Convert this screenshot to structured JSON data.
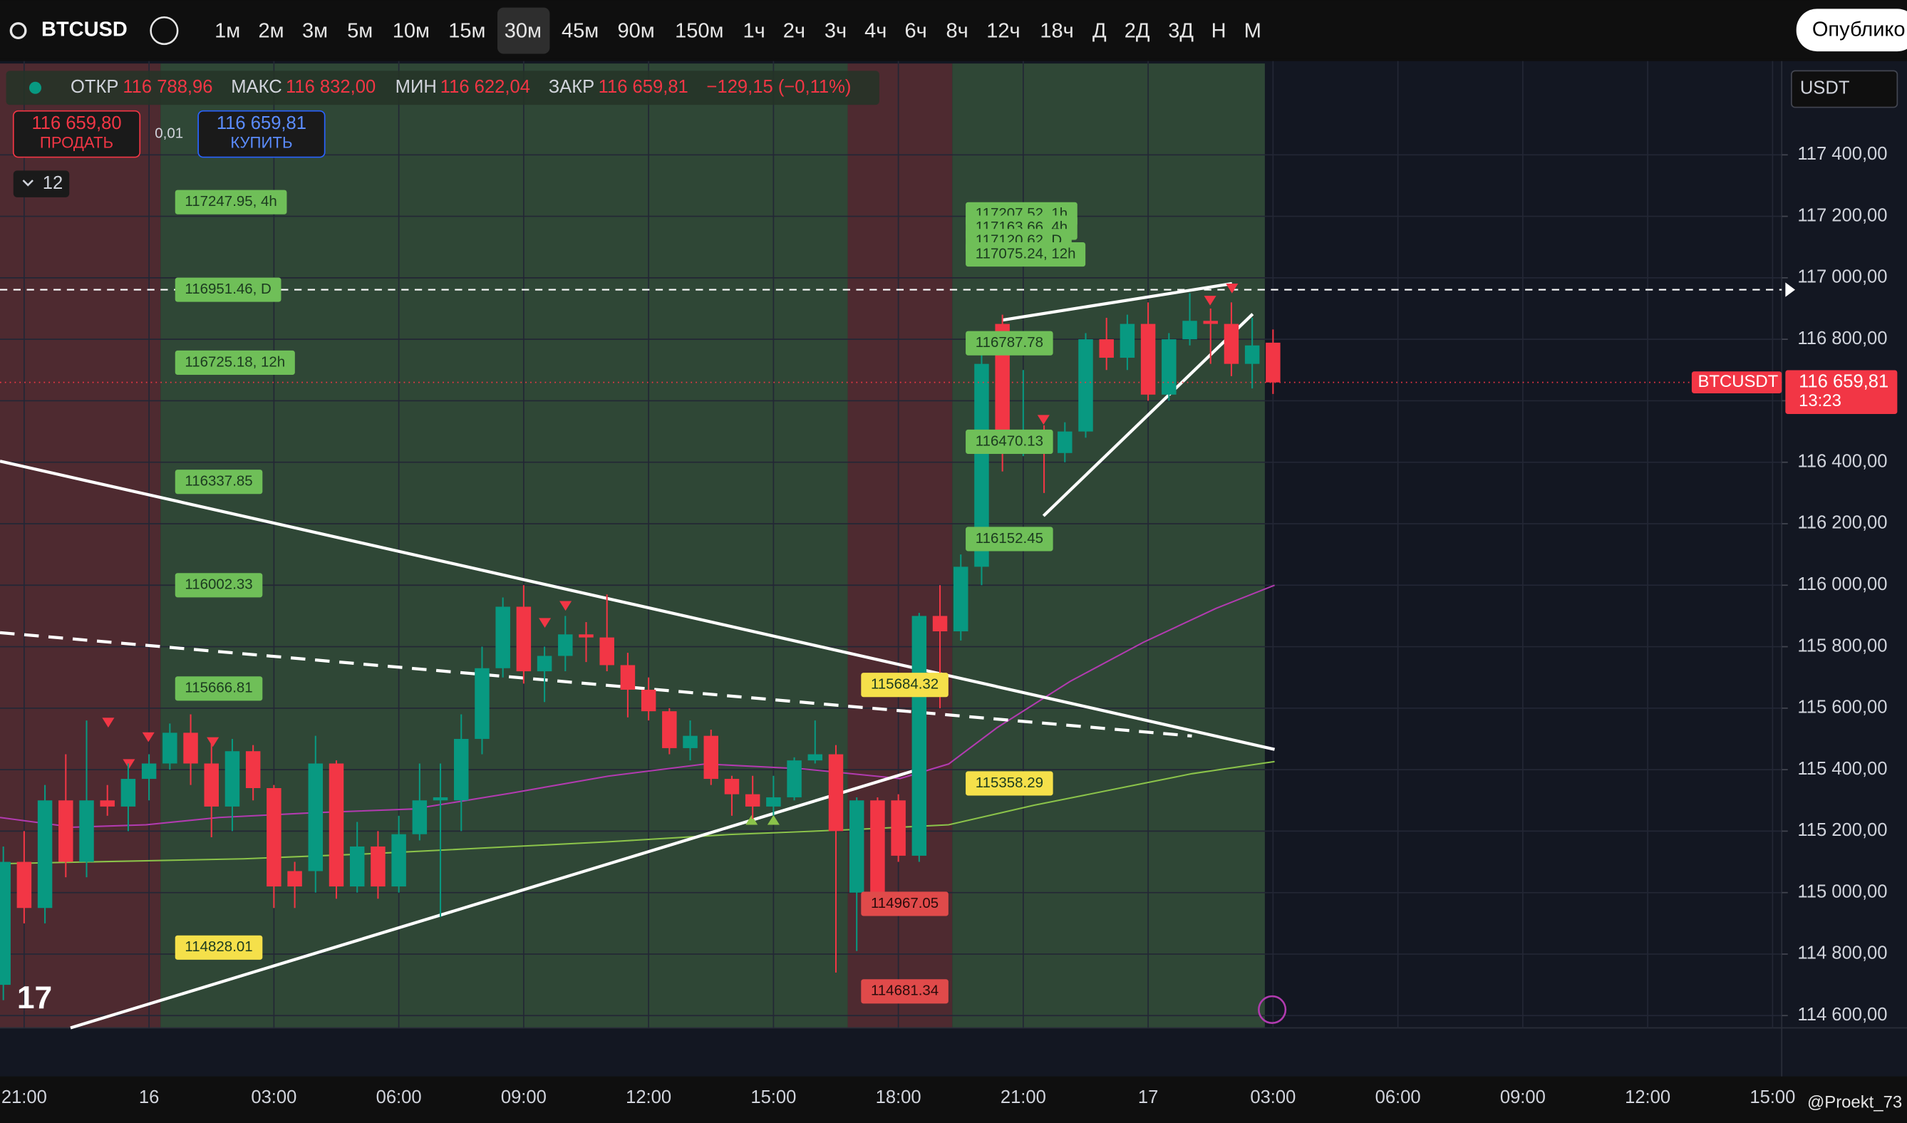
{
  "toolbar": {
    "symbol": "BTCUSD",
    "intervals": [
      "1м",
      "2м",
      "3м",
      "5м",
      "10м",
      "15м",
      "30м",
      "45м",
      "90м",
      "150м",
      "1ч",
      "2ч",
      "3ч",
      "4ч",
      "6ч",
      "8ч",
      "12ч",
      "18ч",
      "Д",
      "2Д",
      "3Д",
      "Н",
      "М"
    ],
    "publish": "Опублико"
  },
  "ohlc_legend": {
    "open_label": "ОТКР",
    "open": "116 788,96",
    "high_label": "МАКС",
    "high": "116 832,00",
    "low_label": "МИН",
    "low": "116 622,04",
    "close_label": "ЗАКР",
    "close": "116 659,81",
    "change": "−129,15 (−0,11%)"
  },
  "trade": {
    "sell_price": "116 659,80",
    "sell": "ПРОДАТЬ",
    "spread": "0,01",
    "buy_price": "116 659,81",
    "buy": "КУПИТЬ"
  },
  "indicators_count": "12",
  "currency": "USDT",
  "watermark": "@Proekt_73",
  "level_labels": [
    "117247.95, 4h",
    "116951.46, D",
    "116725.18, 12h",
    "116337.85",
    "116002.33",
    "115666.81",
    "114828.01",
    "117207.52, 1h",
    "117163.66, 4h",
    "117120.62, D",
    "117075.24, 12h",
    "116787.78",
    "116470.13",
    "116152.45",
    "115684.32",
    "115358.29",
    "114967.05",
    "114681.34"
  ],
  "chart_data": {
    "type": "candlestick",
    "x": [
      20.5,
      21,
      21.5,
      22,
      22.5,
      23,
      23.5,
      24,
      24.5,
      25,
      25.5,
      26,
      26.5,
      27,
      27.5,
      28,
      28.5,
      29,
      29.5,
      30,
      30.5,
      31,
      31.5,
      32,
      32.5,
      33,
      33.5,
      34,
      34.5,
      35,
      35.5,
      36,
      36.5,
      37,
      37.5,
      38,
      38.5,
      39,
      39.5,
      40,
      40.5,
      41,
      41.5,
      42,
      42.5,
      43,
      43.5,
      44,
      44.5,
      45,
      45.5,
      46,
      46.5,
      47,
      47.5,
      48,
      48.5,
      49,
      49.5,
      50,
      50.5,
      51
    ],
    "open": [
      114700,
      115100,
      114950,
      115300,
      115100,
      115300,
      115280,
      115370,
      115420,
      115520,
      115420,
      115280,
      115460,
      115340,
      115070,
      115070,
      115420,
      115020,
      115150,
      115020,
      115190,
      115300,
      115300,
      115500,
      115730,
      115930,
      115720,
      115770,
      115840,
      115830,
      115740,
      115660,
      115590,
      115470,
      115510,
      115370,
      115320,
      115280,
      115310,
      115430,
      115450,
      115000,
      115300,
      115300,
      115120,
      115900,
      115850,
      116060,
      116850,
      116450,
      116480,
      116430,
      116500,
      116800,
      116740,
      116850,
      116620,
      116800,
      116860,
      116850,
      116720,
      116788.96
    ],
    "high": [
      115150,
      115200,
      115350,
      115450,
      115560,
      115350,
      115420,
      115450,
      115550,
      115580,
      115500,
      115500,
      115480,
      115350,
      115100,
      115510,
      115430,
      115230,
      115200,
      115250,
      115420,
      115420,
      115580,
      115800,
      115960,
      116000,
      115800,
      115900,
      115880,
      115970,
      115780,
      115700,
      115600,
      115560,
      115530,
      115380,
      115380,
      115380,
      115440,
      115560,
      115480,
      115310,
      115310,
      115320,
      115910,
      116000,
      116100,
      116800,
      116880,
      116700,
      116520,
      116530,
      116820,
      116870,
      116880,
      116920,
      116820,
      116950,
      116900,
      116920,
      116870,
      116832
    ],
    "low": [
      114650,
      114900,
      114900,
      115050,
      115050,
      115250,
      115200,
      115300,
      115400,
      115350,
      115180,
      115200,
      115300,
      114950,
      114950,
      115000,
      114980,
      115000,
      114980,
      115000,
      115170,
      114920,
      115200,
      115450,
      115700,
      115680,
      115620,
      115720,
      115750,
      115720,
      115570,
      115560,
      115450,
      115430,
      115350,
      115250,
      115240,
      115250,
      115300,
      115420,
      114740,
      114810,
      114950,
      115100,
      115100,
      115600,
      115820,
      116000,
      116370,
      116420,
      116300,
      116400,
      116480,
      116700,
      116700,
      116600,
      116600,
      116780,
      116720,
      116680,
      116640,
      116622.04
    ],
    "close": [
      115100,
      114950,
      115300,
      115100,
      115300,
      115280,
      115370,
      115420,
      115520,
      115420,
      115280,
      115460,
      115340,
      115020,
      115020,
      115420,
      115020,
      115150,
      115020,
      115190,
      115300,
      115310,
      115500,
      115730,
      115930,
      115720,
      115770,
      115840,
      115830,
      115740,
      115660,
      115590,
      115470,
      115510,
      115370,
      115320,
      115280,
      115310,
      115430,
      115450,
      115200,
      115300,
      115000,
      115120,
      115900,
      115850,
      116060,
      116720,
      116450,
      116490,
      116430,
      116500,
      116800,
      116740,
      116850,
      116620,
      116800,
      116860,
      116850,
      116720,
      116780,
      116659.81
    ],
    "up_color": "#089981",
    "down_color": "#f23645",
    "xlim": [
      20.42,
      63.22
    ],
    "xticks": [
      {
        "value": 21,
        "label": "21:00"
      },
      {
        "value": 24,
        "label": "16"
      },
      {
        "value": 27,
        "label": "03:00"
      },
      {
        "value": 30,
        "label": "06:00"
      },
      {
        "value": 33,
        "label": "09:00"
      },
      {
        "value": 36,
        "label": "12:00"
      },
      {
        "value": 39,
        "label": "15:00"
      },
      {
        "value": 42,
        "label": "18:00"
      },
      {
        "value": 45,
        "label": "21:00"
      },
      {
        "value": 48,
        "label": "17"
      },
      {
        "value": 51,
        "label": "03:00"
      },
      {
        "value": 54,
        "label": "06:00"
      },
      {
        "value": 57,
        "label": "09:00"
      },
      {
        "value": 60,
        "label": "12:00"
      },
      {
        "value": 63,
        "label": "15:00"
      }
    ],
    "ylim": [
      114560,
      117705
    ],
    "yticks": [
      {
        "value": 114600,
        "label": "114 600,00"
      },
      {
        "value": 114800,
        "label": "114 800,00"
      },
      {
        "value": 115000,
        "label": "115 000,00"
      },
      {
        "value": 115200,
        "label": "115 200,00"
      },
      {
        "value": 115400,
        "label": "115 400,00"
      },
      {
        "value": 115600,
        "label": "115 600,00"
      },
      {
        "value": 115800,
        "label": "115 800,00"
      },
      {
        "value": 116000,
        "label": "116 000,00"
      },
      {
        "value": 116200,
        "label": "116 200,00"
      },
      {
        "value": 116400,
        "label": "116 400,00"
      },
      {
        "value": 116600,
        "label": "116 600,00"
      },
      {
        "value": 116800,
        "label": "116 800,00"
      },
      {
        "value": 117000,
        "label": "117 000,00"
      },
      {
        "value": 117200,
        "label": "117 200,00"
      },
      {
        "value": 117400,
        "label": "117 400,00"
      }
    ],
    "grid": true,
    "symbol_label": "BTCUSDT",
    "last_price": {
      "value": 116659.81,
      "label": "116 659,81"
    },
    "countdown": "13:23"
  }
}
